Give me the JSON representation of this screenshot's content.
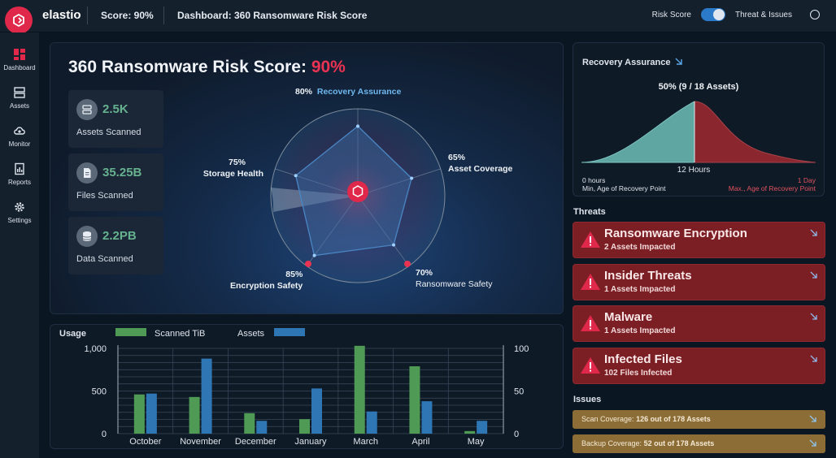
{
  "app": {
    "brand": "elastio"
  },
  "topbar": {
    "score": "Score: 90%",
    "dashboard_title": "Dashboard: 360 Ransomware Risk Score",
    "toggle_left": "Risk Score",
    "toggle_right": "Threat & Issues",
    "toggle_on": true
  },
  "sidebar": {
    "items": [
      {
        "label": "Dashboard",
        "icon": "dashboard-icon",
        "active": true
      },
      {
        "label": "Assets",
        "icon": "assets-icon"
      },
      {
        "label": "Monitor",
        "icon": "monitor-icon"
      },
      {
        "label": "Reports",
        "icon": "reports-icon"
      },
      {
        "label": "Settings",
        "icon": "gear-icon"
      }
    ]
  },
  "hero": {
    "title": "360 Ransomware Risk Score:",
    "score": "90%",
    "stats": [
      {
        "value": "2.5K",
        "label": "Assets Scanned",
        "icon": "server-icon"
      },
      {
        "value": "35.25B",
        "label": "Files Scanned",
        "icon": "file-icon"
      },
      {
        "value": "2.2PB",
        "label": "Data Scanned",
        "icon": "database-icon"
      }
    ],
    "radar": [
      {
        "pct": "80%",
        "name": "Recovery Assurance",
        "value": 80
      },
      {
        "pct": "65%",
        "name": "Asset Coverage",
        "value": 65
      },
      {
        "pct": "70%",
        "name": "Ransomware Safety",
        "value": 70
      },
      {
        "pct": "85%",
        "name": "Encryption Safety",
        "value": 85
      },
      {
        "pct": "75%",
        "name": "Storage Health",
        "value": 75
      }
    ]
  },
  "usage": {
    "title": "Usage",
    "legend": [
      "Scanned TiB",
      "Assets"
    ],
    "colors": {
      "scanned": "#4f9a55",
      "assets": "#2f77b4",
      "accent": "#ea3352"
    }
  },
  "chart_data": {
    "type": "bar",
    "categories": [
      "October",
      "November",
      "December",
      "January",
      "March",
      "April",
      "May"
    ],
    "series": [
      {
        "name": "Scanned TiB",
        "axis": "left",
        "values": [
          460,
          430,
          240,
          170,
          1030,
          790,
          30
        ]
      },
      {
        "name": "Assets",
        "axis": "right",
        "values": [
          47,
          88,
          15,
          53,
          26,
          38,
          15
        ]
      }
    ],
    "y_left": {
      "ticks": [
        "0",
        "500",
        "1,000"
      ],
      "range": [
        0,
        1000
      ]
    },
    "y_right": {
      "ticks": [
        "0",
        "50",
        "100"
      ],
      "range": [
        0,
        100
      ]
    },
    "grid": true,
    "legend_position": "top-left"
  },
  "recovery": {
    "title": "Recovery Assurance",
    "summary": "50% (9 / 18 Assets)",
    "center": "12 Hours",
    "left_top": "0 hours",
    "left_bottom": "Min, Age of Recovery Point",
    "right_top": "1 Day",
    "right_bottom": "Max., Age of Recovery Point",
    "colors": {
      "left": "#5fa6a3",
      "right": "#8a262e"
    }
  },
  "threats": {
    "title": "Threats",
    "items": [
      {
        "title": "Ransomware Encryption",
        "sub": "2 Assets Impacted"
      },
      {
        "title": "Insider Threats",
        "sub": "1 Assets Impacted"
      },
      {
        "title": "Malware",
        "sub": "1 Assets Impacted"
      },
      {
        "title": "Infected Files",
        "sub": "102 Files Infected"
      }
    ]
  },
  "issues": {
    "title": "Issues",
    "items": [
      {
        "label": "Scan Coverage:",
        "value": "126 out of 178 Assets"
      },
      {
        "label": "Backup Coverage:",
        "value": "52 out of 178 Assets"
      }
    ]
  }
}
